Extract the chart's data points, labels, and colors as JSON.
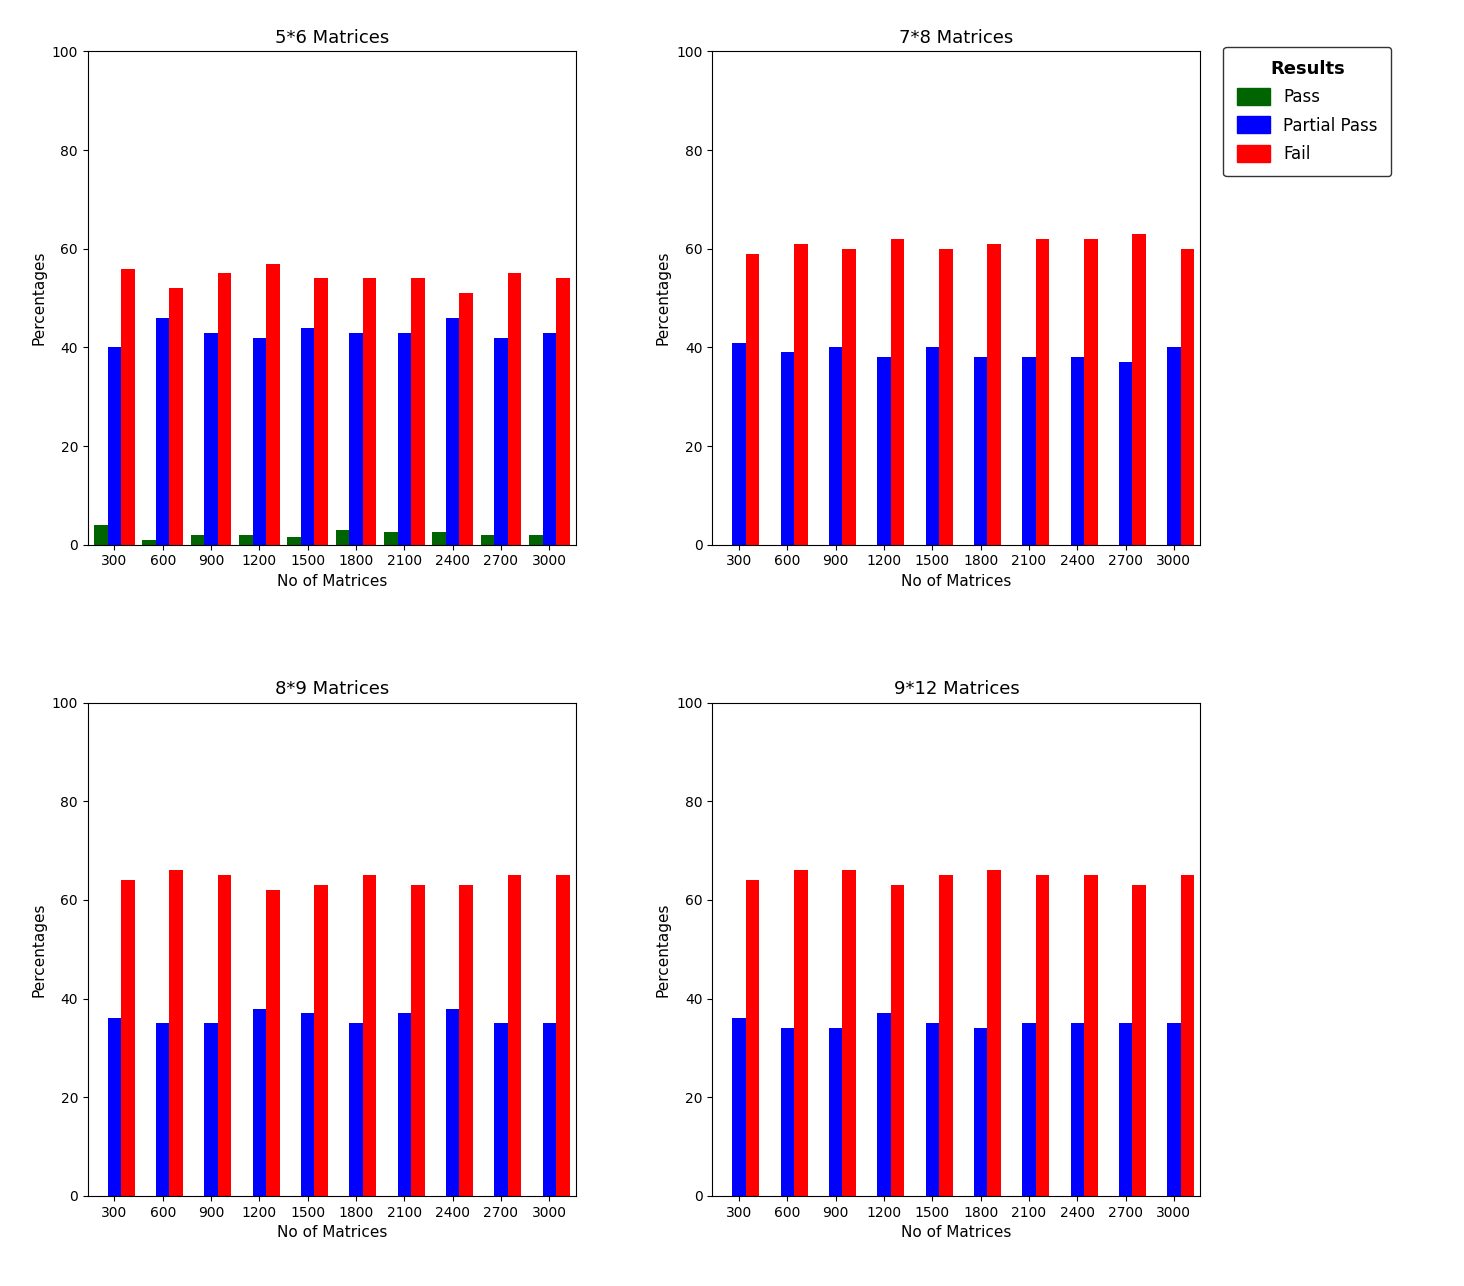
{
  "subplots": [
    {
      "title": "5*6 Matrices",
      "categories": [
        300,
        600,
        900,
        1200,
        1500,
        1800,
        2100,
        2400,
        2700,
        3000
      ],
      "pass": [
        4,
        1,
        2,
        2,
        1.5,
        3,
        2.5,
        2.5,
        2,
        2
      ],
      "partial_pass": [
        40,
        46,
        43,
        42,
        44,
        43,
        43,
        46,
        42,
        43
      ],
      "fail": [
        56,
        52,
        55,
        57,
        54,
        54,
        54,
        51,
        55,
        54
      ]
    },
    {
      "title": "7*8 Matrices",
      "categories": [
        300,
        600,
        900,
        1200,
        1500,
        1800,
        2100,
        2400,
        2700,
        3000
      ],
      "pass": [
        0,
        0,
        0,
        0,
        0,
        0,
        0,
        0,
        0,
        0
      ],
      "partial_pass": [
        41,
        39,
        40,
        38,
        40,
        38,
        38,
        38,
        37,
        40
      ],
      "fail": [
        59,
        61,
        60,
        62,
        60,
        61,
        62,
        62,
        63,
        60
      ]
    },
    {
      "title": "8*9 Matrices",
      "categories": [
        300,
        600,
        900,
        1200,
        1500,
        1800,
        2100,
        2400,
        2700,
        3000
      ],
      "pass": [
        0,
        0,
        0,
        0,
        0,
        0,
        0,
        0,
        0,
        0
      ],
      "partial_pass": [
        36,
        35,
        35,
        38,
        37,
        35,
        37,
        38,
        35,
        35
      ],
      "fail": [
        64,
        66,
        65,
        62,
        63,
        65,
        63,
        63,
        65,
        65
      ]
    },
    {
      "title": "9*12 Matrices",
      "categories": [
        300,
        600,
        900,
        1200,
        1500,
        1800,
        2100,
        2400,
        2700,
        3000
      ],
      "pass": [
        0,
        0,
        0,
        0,
        0,
        0,
        0,
        0,
        0,
        0
      ],
      "partial_pass": [
        36,
        34,
        34,
        37,
        35,
        34,
        35,
        35,
        35,
        35
      ],
      "fail": [
        64,
        66,
        66,
        63,
        65,
        66,
        65,
        65,
        63,
        65
      ]
    }
  ],
  "colors": {
    "pass": "#006400",
    "partial_pass": "#0000FF",
    "fail": "#FF0000"
  },
  "legend_title": "Results",
  "legend_labels": [
    "Pass",
    "Partial Pass",
    "Fail"
  ],
  "xlabel": "No of Matrices",
  "ylabel": "Percentages",
  "ylim": [
    0,
    100
  ],
  "yticks": [
    0,
    20,
    40,
    60,
    80,
    100
  ],
  "bar_width": 0.28,
  "background_color": "#ffffff",
  "title_fontsize": 13,
  "axis_fontsize": 11,
  "tick_fontsize": 10,
  "legend_fontsize": 12,
  "legend_title_fontsize": 13
}
